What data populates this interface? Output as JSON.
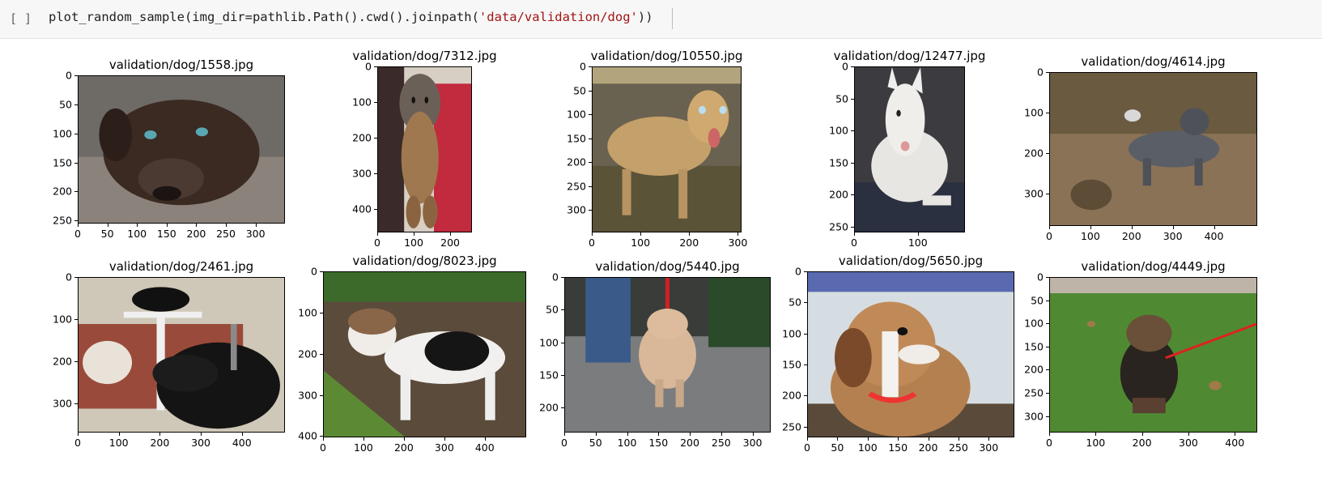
{
  "cell": {
    "prompt": "[ ]",
    "code_prefix": "plot_random_sample(img_dir=pathlib.Path().cwd().joinpath(",
    "code_string": "'data/validation/dog'",
    "code_suffix": "))"
  },
  "plots": [
    {
      "title": "validation/dog/1558.jpg",
      "yticks": [
        "0",
        "50",
        "100",
        "150",
        "200",
        "250"
      ],
      "xticks": [
        "0",
        "50",
        "100",
        "150",
        "200",
        "250",
        "300"
      ],
      "scene": "chocolate-lab-lying"
    },
    {
      "title": "validation/dog/7312.jpg",
      "yticks": [
        "0",
        "100",
        "200",
        "300",
        "400"
      ],
      "xticks": [
        "0",
        "100",
        "200"
      ],
      "scene": "puppy-held"
    },
    {
      "title": "validation/dog/10550.jpg",
      "yticks": [
        "0",
        "50",
        "100",
        "150",
        "200",
        "250",
        "300"
      ],
      "xticks": [
        "0",
        "100",
        "200",
        "300"
      ],
      "scene": "yellow-lab"
    },
    {
      "title": "validation/dog/12477.jpg",
      "yticks": [
        "0",
        "50",
        "100",
        "150",
        "200",
        "250"
      ],
      "xticks": [
        "0",
        "100"
      ],
      "scene": "bull-terrier"
    },
    {
      "title": "validation/dog/4614.jpg",
      "yticks": [
        "0",
        "100",
        "200",
        "300"
      ],
      "xticks": [
        "0",
        "100",
        "200",
        "300",
        "400"
      ],
      "scene": "merle-dog-yard"
    },
    {
      "title": "validation/dog/2461.jpg",
      "yticks": [
        "0",
        "100",
        "200",
        "300"
      ],
      "xticks": [
        "0",
        "100",
        "200",
        "300",
        "400"
      ],
      "scene": "black-dog-cat"
    },
    {
      "title": "validation/dog/8023.jpg",
      "yticks": [
        "0",
        "100",
        "200",
        "300",
        "400"
      ],
      "xticks": [
        "0",
        "100",
        "200",
        "300",
        "400"
      ],
      "scene": "pitbull-puppy"
    },
    {
      "title": "validation/dog/5440.jpg",
      "yticks": [
        "0",
        "50",
        "100",
        "150",
        "200"
      ],
      "xticks": [
        "0",
        "50",
        "100",
        "150",
        "200",
        "250",
        "300"
      ],
      "scene": "cocker-spaniel"
    },
    {
      "title": "validation/dog/5650.jpg",
      "yticks": [
        "0",
        "50",
        "100",
        "150",
        "200",
        "250"
      ],
      "xticks": [
        "0",
        "50",
        "100",
        "150",
        "200",
        "250",
        "300"
      ],
      "scene": "foxhound"
    },
    {
      "title": "validation/dog/4449.jpg",
      "yticks": [
        "0",
        "50",
        "100",
        "150",
        "200",
        "250",
        "300"
      ],
      "xticks": [
        "0",
        "100",
        "200",
        "300",
        "400"
      ],
      "scene": "puppy-grass"
    }
  ],
  "colors": {
    "cell_bg": "#f7f7f7",
    "string": "#a31515",
    "code": "#212121"
  }
}
